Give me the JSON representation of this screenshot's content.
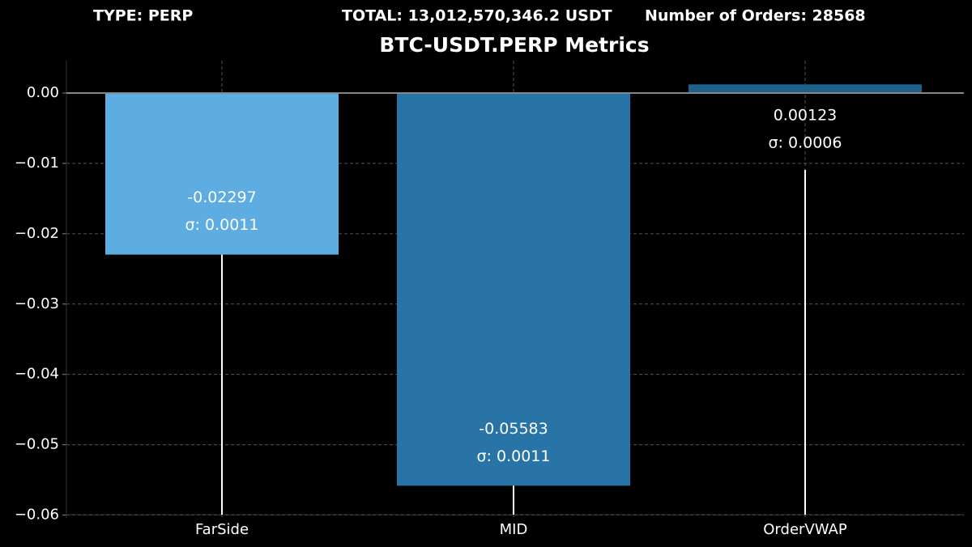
{
  "chart_data": {
    "type": "bar",
    "annotations": [
      "TYPE: PERP",
      "TOTAL: 13,012,570,346.2 USDT",
      "Number of Orders: 28568"
    ],
    "title": "BTC-USDT.PERP Metrics",
    "categories": [
      "FarSide",
      "MID",
      "OrderVWAP"
    ],
    "values": [
      -0.02297,
      -0.05583,
      0.00123
    ],
    "errors": [
      0.0011,
      0.0011,
      0.0006
    ],
    "error_labels": [
      "σ: 0.0011",
      "σ: 0.0011",
      "σ: 0.0006"
    ],
    "colors": [
      "#5dade2",
      "#2874a6",
      "#1f618d"
    ],
    "ylim": [
      -0.0604,
      0.0046
    ],
    "yticks": [
      {
        "value": 0,
        "label": "0.00"
      },
      {
        "value": -0.01,
        "label": "−0.01"
      },
      {
        "value": -0.02,
        "label": "−0.02"
      },
      {
        "value": -0.03,
        "label": "−0.03"
      },
      {
        "value": -0.04,
        "label": "−0.04"
      },
      {
        "value": -0.05,
        "label": "−0.05"
      },
      {
        "value": -0.06,
        "label": "−0.06"
      }
    ],
    "grid": true
  }
}
